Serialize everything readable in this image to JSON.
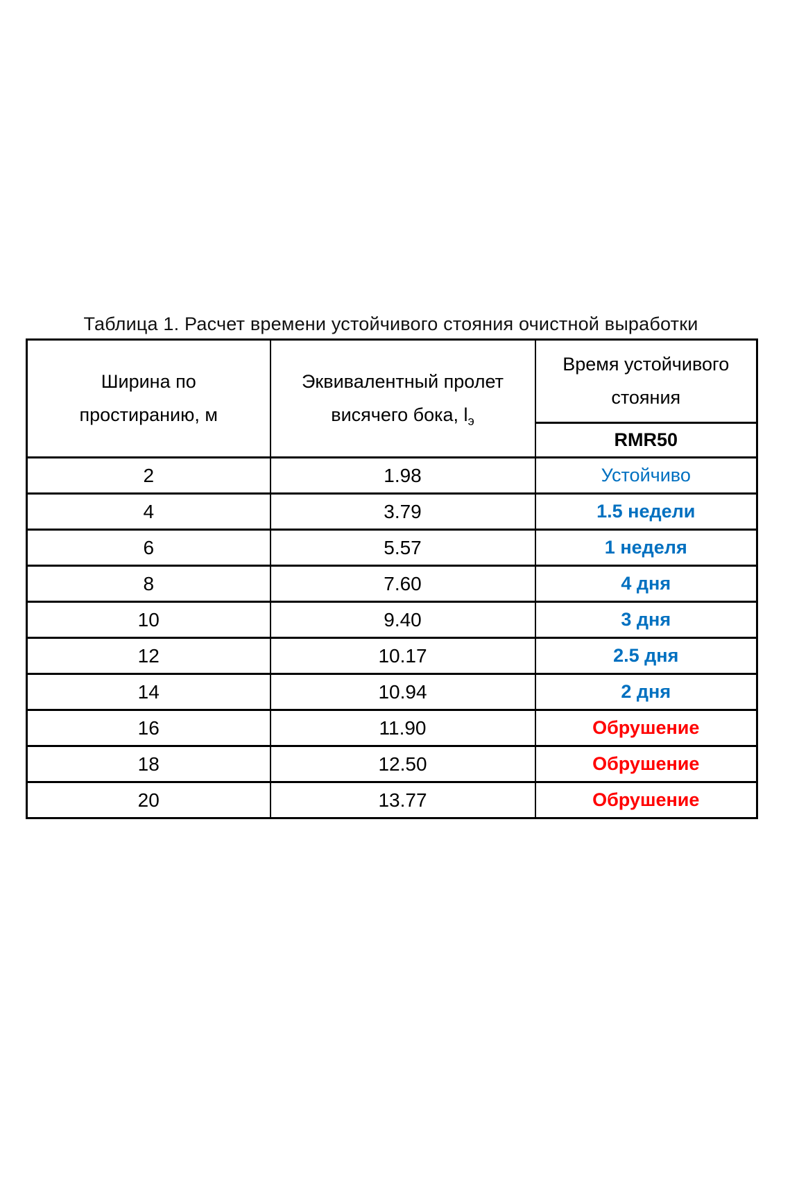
{
  "page": {
    "title": "Таблица 1. Расчет времени устойчивого стояния очистной выработки"
  },
  "colors": {
    "background": "#FFFFFF",
    "text": "#000000",
    "stable_blue": "#0070C0",
    "collapse_red": "#FF0000",
    "border": "#000000"
  },
  "table": {
    "header": {
      "col1": "Ширина по простиранию, м",
      "col2_main": "Эквивалентный пролет висячего бока, l",
      "col2_subscript": "э",
      "col3_group": "Время устойчивого стояния",
      "col3_sub": "RMR50"
    },
    "rows": [
      {
        "width": "2",
        "span": "1.98",
        "time": "Устойчиво",
        "color": "#0070C0",
        "bold": false
      },
      {
        "width": "4",
        "span": "3.79",
        "time": "1.5 недели",
        "color": "#0070C0",
        "bold": true
      },
      {
        "width": "6",
        "span": "5.57",
        "time": "1 неделя",
        "color": "#0070C0",
        "bold": true
      },
      {
        "width": "8",
        "span": "7.60",
        "time": "4 дня",
        "color": "#0070C0",
        "bold": true
      },
      {
        "width": "10",
        "span": "9.40",
        "time": "3 дня",
        "color": "#0070C0",
        "bold": true
      },
      {
        "width": "12",
        "span": "10.17",
        "time": "2.5 дня",
        "color": "#0070C0",
        "bold": true
      },
      {
        "width": "14",
        "span": "10.94",
        "time": "2 дня",
        "color": "#0070C0",
        "bold": true
      },
      {
        "width": "16",
        "span": "11.90",
        "time": "Обрушение",
        "color": "#FF0000",
        "bold": true
      },
      {
        "width": "18",
        "span": "12.50",
        "time": "Обрушение",
        "color": "#FF0000",
        "bold": true
      },
      {
        "width": "20",
        "span": "13.77",
        "time": "Обрушение",
        "color": "#FF0000",
        "bold": true
      }
    ]
  }
}
